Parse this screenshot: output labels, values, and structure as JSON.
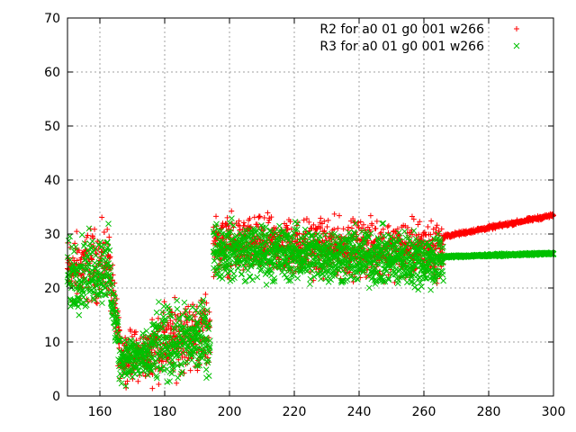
{
  "chart_data": {
    "type": "scatter",
    "title": "",
    "xlabel": "",
    "ylabel": "",
    "xlim": [
      150,
      300
    ],
    "ylim": [
      0,
      70
    ],
    "x_ticks": [
      "160",
      "180",
      "200",
      "220",
      "240",
      "260",
      "280",
      "300"
    ],
    "y_ticks": [
      "0",
      "10",
      "20",
      "30",
      "40",
      "50",
      "60",
      "70"
    ],
    "grid": true,
    "legend_position": "top-right",
    "series": [
      {
        "name": "R2 for a0 01 g0 001 w266",
        "color": "#ff0000",
        "marker": "plus",
        "segments": [
          {
            "x": [
              150,
              163
            ],
            "center": [
              23,
              25
            ],
            "spread": 4.5,
            "n": 180
          },
          {
            "x": [
              163,
              166
            ],
            "center": [
              22,
              10
            ],
            "spread": 3.5,
            "n": 50
          },
          {
            "x": [
              166,
              176
            ],
            "center": [
              7.5,
              7.5
            ],
            "spread": 3,
            "n": 150
          },
          {
            "x": [
              176,
              194
            ],
            "center": [
              9.5,
              12
            ],
            "spread": 4.5,
            "n": 260
          },
          {
            "x": [
              195,
              266
            ],
            "center": [
              28,
              27
            ],
            "spread": 3.5,
            "n": 1100
          },
          {
            "x": [
              266,
              300
            ],
            "center": [
              29.5,
              33.5
            ],
            "spread": 0.25,
            "n": 400
          }
        ]
      },
      {
        "name": "R3 for a0 01 g0 001 w266",
        "color": "#00c000",
        "marker": "cross",
        "segments": [
          {
            "x": [
              150,
              163
            ],
            "center": [
              22,
              24
            ],
            "spread": 4.5,
            "n": 180
          },
          {
            "x": [
              163,
              166
            ],
            "center": [
              21,
              9
            ],
            "spread": 3.5,
            "n": 50
          },
          {
            "x": [
              166,
              176
            ],
            "center": [
              7,
              7
            ],
            "spread": 3,
            "n": 150
          },
          {
            "x": [
              176,
              194
            ],
            "center": [
              9,
              11
            ],
            "spread": 4.5,
            "n": 260
          },
          {
            "x": [
              195,
              266
            ],
            "center": [
              27,
              25
            ],
            "spread": 3.5,
            "n": 1100
          },
          {
            "x": [
              266,
              300
            ],
            "center": [
              25.8,
              26.4
            ],
            "spread": 0.15,
            "n": 400
          }
        ]
      }
    ]
  }
}
